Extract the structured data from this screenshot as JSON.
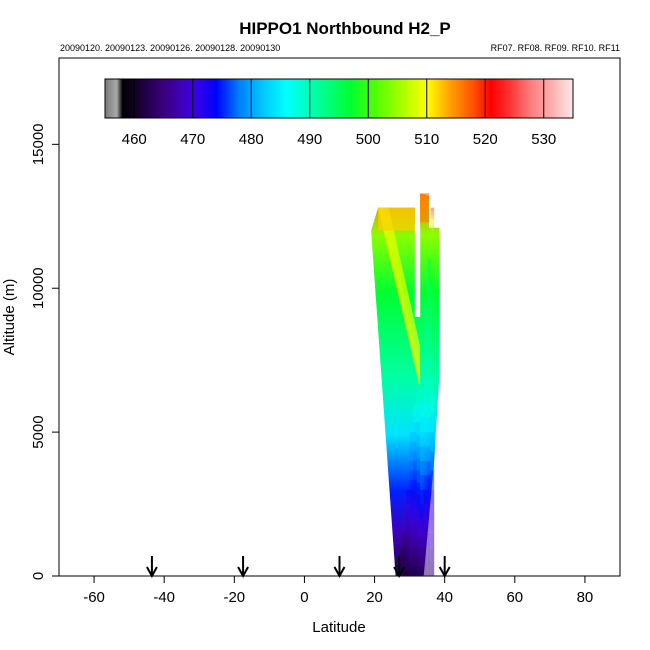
{
  "chart_data": {
    "type": "heatmap",
    "title": "HIPPO1 Northbound H2_P",
    "subtitle_left": "20090120. 20090123. 20090126. 20090128. 20090130",
    "subtitle_right": "RF07. RF08. RF09. RF10. RF11",
    "xlabel": "Latitude",
    "ylabel": "Altitude (m)",
    "xlim": [
      -70,
      90
    ],
    "ylim": [
      0,
      18000
    ],
    "xticks": [
      -60,
      -40,
      -20,
      0,
      20,
      40,
      60,
      80
    ],
    "yticks": [
      0,
      5000,
      10000,
      15000
    ],
    "grid": false,
    "colorbar": {
      "placement": "top",
      "range": [
        455,
        535
      ],
      "ticks": [
        460,
        470,
        480,
        490,
        500,
        510,
        520,
        530
      ],
      "stops": [
        {
          "v": 455,
          "c": "#7a7a7a"
        },
        {
          "v": 457,
          "c": "#aaaaaa"
        },
        {
          "v": 458,
          "c": "#000000"
        },
        {
          "v": 465,
          "c": "#3a0080"
        },
        {
          "v": 470,
          "c": "#4000e0"
        },
        {
          "v": 474,
          "c": "#0000ff"
        },
        {
          "v": 478,
          "c": "#0080ff"
        },
        {
          "v": 482,
          "c": "#00c8ff"
        },
        {
          "v": 486,
          "c": "#00ffff"
        },
        {
          "v": 492,
          "c": "#00ff90"
        },
        {
          "v": 497,
          "c": "#00ff30"
        },
        {
          "v": 502,
          "c": "#60ff00"
        },
        {
          "v": 506,
          "c": "#b0ff00"
        },
        {
          "v": 510,
          "c": "#ffff00"
        },
        {
          "v": 514,
          "c": "#ffa000"
        },
        {
          "v": 518,
          "c": "#ff5000"
        },
        {
          "v": 521,
          "c": "#ff0000"
        },
        {
          "v": 524,
          "c": "#ff3030"
        },
        {
          "v": 528,
          "c": "#ff8080"
        },
        {
          "v": 532,
          "c": "#ffb8b8"
        },
        {
          "v": 535,
          "c": "#ffe8e8"
        }
      ]
    },
    "flight_markers_lat": [
      -43.5,
      -17.5,
      10,
      27,
      40
    ],
    "profile_columns": [
      {
        "lat": 27.5,
        "alt_top": 1000,
        "values": [
          [
            0,
            462
          ],
          [
            1000,
            463
          ]
        ]
      },
      {
        "lat": 28.5,
        "alt_top": 1500,
        "values": [
          [
            0,
            461
          ],
          [
            1500,
            464
          ]
        ]
      },
      {
        "lat": 29.5,
        "alt_top": 3000,
        "values": [
          [
            0,
            461
          ],
          [
            1500,
            466
          ],
          [
            3000,
            473
          ]
        ]
      },
      {
        "lat": 30.5,
        "alt_top": 5000,
        "values": [
          [
            0,
            462
          ],
          [
            1500,
            468
          ],
          [
            3000,
            474
          ],
          [
            5000,
            482
          ]
        ]
      },
      {
        "lat": 31.5,
        "alt_top": 6000,
        "values": [
          [
            0,
            462
          ],
          [
            2000,
            470
          ],
          [
            4000,
            477
          ],
          [
            6000,
            488
          ]
        ]
      },
      {
        "lat": 32.5,
        "alt_top": 7000,
        "values": [
          [
            0,
            463
          ],
          [
            2000,
            471
          ],
          [
            4500,
            480
          ],
          [
            7000,
            492
          ]
        ]
      },
      {
        "lat": 33.5,
        "alt_top": 8000,
        "values": [
          [
            0,
            463
          ],
          [
            2000,
            472
          ],
          [
            5000,
            484
          ],
          [
            8000,
            494
          ]
        ]
      },
      {
        "lat": 34.5,
        "alt_top": 9500,
        "values": [
          [
            0,
            464
          ],
          [
            2500,
            472
          ],
          [
            5500,
            486
          ],
          [
            9500,
            495
          ]
        ]
      },
      {
        "lat": 35.5,
        "alt_top": 11000,
        "values": [
          [
            0,
            464
          ],
          [
            3000,
            473
          ],
          [
            6000,
            488
          ],
          [
            11000,
            496
          ]
        ]
      },
      {
        "lat": 36.5,
        "alt_top": 12800,
        "values": [
          [
            0,
            465
          ],
          [
            3000,
            474
          ],
          [
            7000,
            491
          ],
          [
            10000,
            497
          ],
          [
            12000,
            505
          ],
          [
            12800,
            518
          ]
        ]
      }
    ]
  }
}
